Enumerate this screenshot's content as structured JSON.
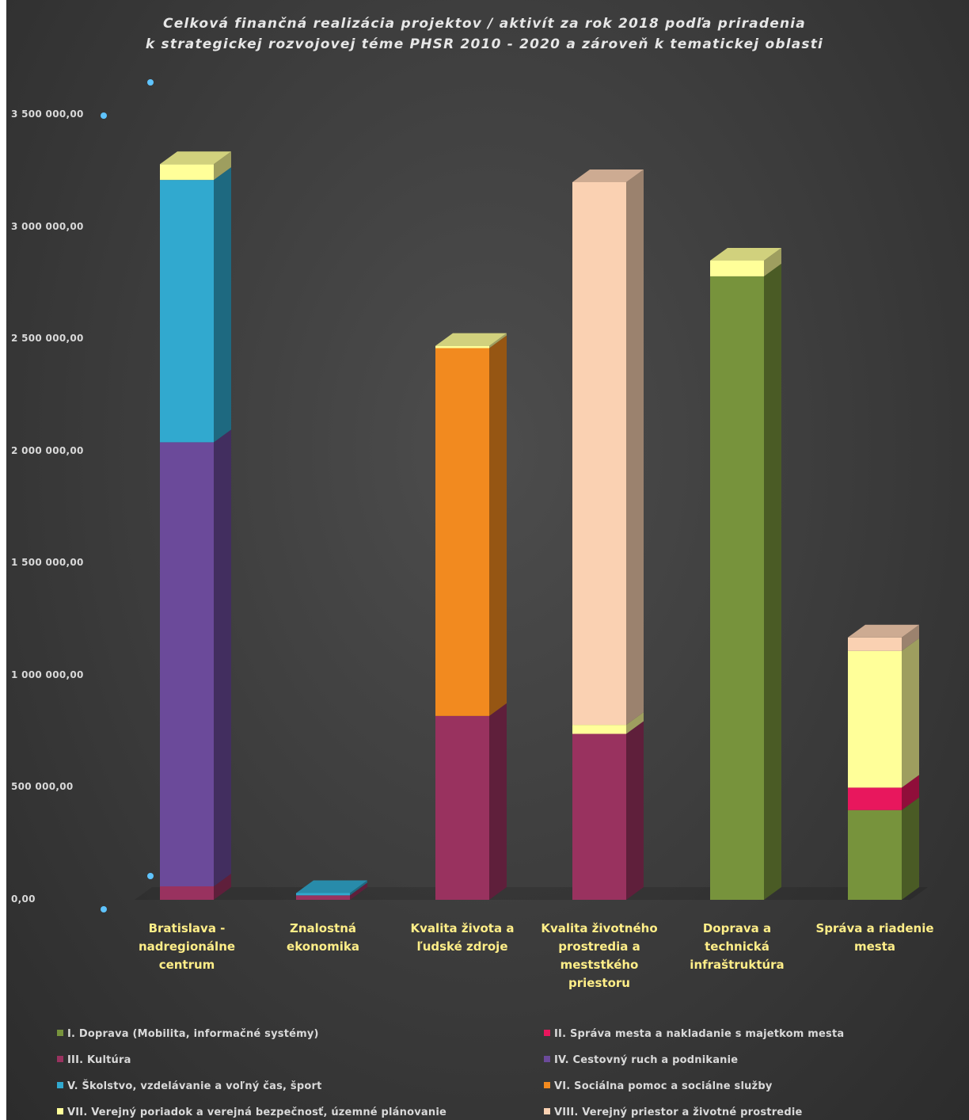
{
  "chart_data": {
    "type": "bar",
    "stacked": true,
    "three_d": true,
    "title_lines": [
      "Celková finančná realizácia projektov / aktivít za rok 2018 podľa priradenia",
      "k strategickej rozvojovej téme PHSR 2010 - 2020 a zároveň k tematickej oblasti"
    ],
    "y_ticks": [
      "0,00",
      "500 000,00",
      "1 000 000,00",
      "1 500 000,00",
      "2 000 000,00",
      "2 500 000,00",
      "3 000 000,00",
      "3 500 000,00"
    ],
    "ylim": [
      0,
      3500000
    ],
    "grid": false,
    "legend_position": "bottom",
    "categories": [
      "Bratislava -\nnadregionálne\ncentrum",
      "Znalostná\nekonomika",
      "Kvalita života a\nľudské zdroje",
      "Kvalita životného\nprostredia a\nmeststkého\npriestoru",
      "Doprava a\ntechnická\ninfraštruktúra",
      "Správa a riadenie\nmesta"
    ],
    "series": [
      {
        "name": "I. Doprava (Mobilita, informačné systémy)",
        "color": "#77933c",
        "values": [
          0,
          0,
          0,
          0,
          2780000,
          400000
        ]
      },
      {
        "name": "II. Správa mesta a nakladanie s majetkom mesta",
        "color": "#e8175d",
        "values": [
          0,
          0,
          0,
          0,
          0,
          100000
        ]
      },
      {
        "name": "III. Kultúra",
        "color": "#99325f",
        "values": [
          60000,
          20000,
          820000,
          740000,
          0,
          0
        ]
      },
      {
        "name": "IV. Cestovný ruch a podnikanie",
        "color": "#6b4a9a",
        "values": [
          1980000,
          0,
          0,
          0,
          0,
          0
        ]
      },
      {
        "name": "V. Školstvo, vzdelávanie a voľný čas, šport",
        "color": "#31a9cf",
        "values": [
          1170000,
          10000,
          0,
          0,
          0,
          0
        ]
      },
      {
        "name": "VI. Sociálna pomoc a sociálne služby",
        "color": "#f28a1f",
        "values": [
          0,
          0,
          1640000,
          0,
          0,
          0
        ]
      },
      {
        "name": "VII. Verejný poriadok a verejná bezpečnosť, územné plánovanie",
        "color": "#ffff99",
        "values": [
          70000,
          0,
          10000,
          40000,
          70000,
          610000
        ]
      },
      {
        "name": "VIII. Verejný priestor a životné prostredie",
        "color": "#fad1b2",
        "values": [
          0,
          0,
          0,
          2420000,
          0,
          60000
        ]
      }
    ]
  }
}
